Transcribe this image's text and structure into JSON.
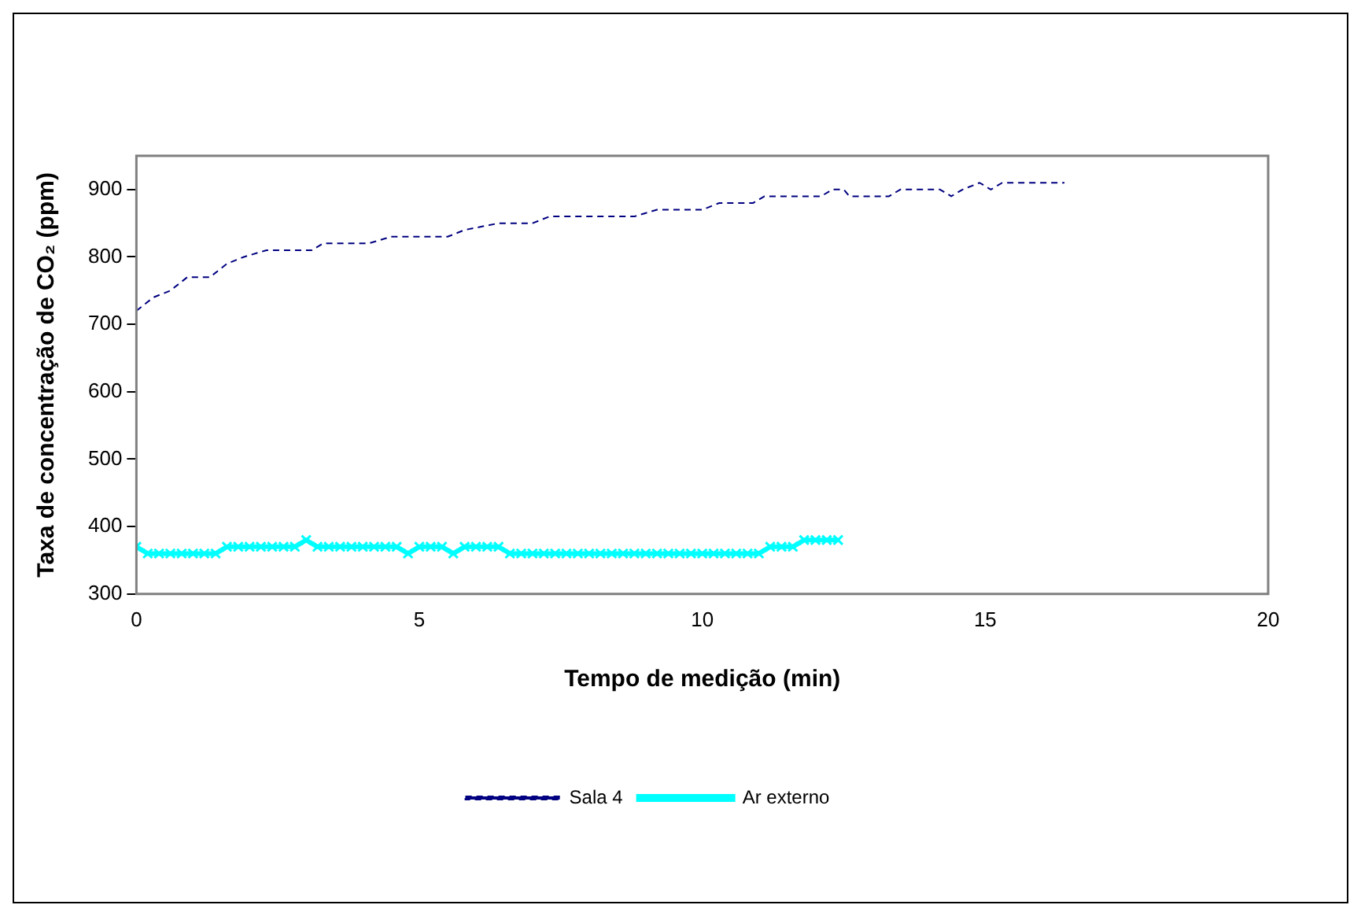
{
  "chart_data": {
    "type": "line",
    "xlabel": "Tempo de medição (min)",
    "ylabel": "Taxa de concentração de CO₂ (ppm)",
    "xlim": [
      0,
      20
    ],
    "xticks": [
      0,
      5,
      10,
      15,
      20
    ],
    "ylim": [
      300,
      950
    ],
    "yticks": [
      300,
      400,
      500,
      600,
      700,
      800,
      900
    ],
    "grid": false,
    "legend": "bottom",
    "series": [
      {
        "name": "Sala 4",
        "color": "#000080",
        "line_style": "dashed",
        "marker": "none",
        "x": [
          0,
          0.3,
          0.6,
          0.9,
          1.3,
          1.6,
          1.9,
          2.3,
          3.1,
          3.3,
          4.1,
          4.5,
          5.5,
          5.8,
          6.4,
          7.0,
          7.3,
          8.8,
          9.2,
          10.0,
          10.3,
          10.9,
          11.1,
          12.1,
          12.3,
          12.5,
          12.6,
          13.3,
          13.5,
          14.2,
          14.4,
          14.6,
          14.9,
          15.1,
          15.3,
          16.4
        ],
        "values": [
          720,
          740,
          750,
          770,
          770,
          790,
          800,
          810,
          810,
          820,
          820,
          830,
          830,
          840,
          850,
          850,
          860,
          860,
          870,
          870,
          880,
          880,
          890,
          890,
          900,
          900,
          890,
          890,
          900,
          900,
          890,
          900,
          910,
          900,
          910,
          910
        ]
      },
      {
        "name": "Ar externo",
        "color": "#00ffff",
        "line_style": "solid",
        "marker": "cross",
        "x": [
          0,
          0.2,
          0.4,
          0.6,
          0.8,
          1.0,
          1.2,
          1.4,
          1.6,
          1.8,
          2.0,
          2.2,
          2.4,
          2.6,
          2.8,
          3.0,
          3.2,
          3.4,
          3.6,
          3.8,
          4.0,
          4.2,
          4.4,
          4.6,
          4.8,
          5.0,
          5.2,
          5.4,
          5.6,
          5.8,
          6.0,
          6.2,
          6.4,
          6.6,
          6.8,
          7.0,
          7.2,
          7.4,
          7.6,
          7.8,
          8.0,
          8.2,
          8.4,
          8.6,
          8.8,
          9.0,
          9.2,
          9.4,
          9.6,
          9.8,
          10.0,
          10.2,
          10.4,
          10.6,
          10.8,
          11.0,
          11.2,
          11.4,
          11.6,
          11.8,
          12.0,
          12.2,
          12.4
        ],
        "values": [
          370,
          360,
          360,
          360,
          360,
          360,
          360,
          360,
          370,
          370,
          370,
          370,
          370,
          370,
          370,
          380,
          370,
          370,
          370,
          370,
          370,
          370,
          370,
          370,
          360,
          370,
          370,
          370,
          360,
          370,
          370,
          370,
          370,
          360,
          360,
          360,
          360,
          360,
          360,
          360,
          360,
          360,
          360,
          360,
          360,
          360,
          360,
          360,
          360,
          360,
          360,
          360,
          360,
          360,
          360,
          360,
          370,
          370,
          370,
          380,
          380,
          380,
          380
        ]
      }
    ]
  }
}
